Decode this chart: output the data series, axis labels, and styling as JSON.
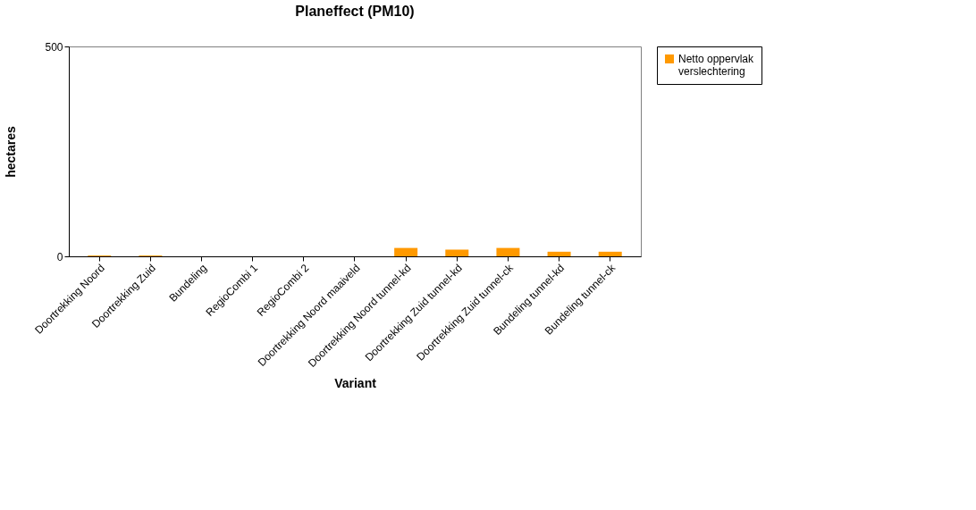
{
  "chart_data": {
    "type": "bar",
    "title": "Planeffect (PM10)",
    "xlabel": "Variant",
    "ylabel": "hectares",
    "categories": [
      "Doortrekking Noord",
      "Doortrekking Zuid",
      "Bundeling",
      "RegioCombi 1",
      "RegioCombi 2",
      "Doortrekking Noord maaiveld",
      "Doortrekking Noord tunnel-kd",
      "Doortrekking Zuid tunnel-kd",
      "Doortrekking Zuid tunnel-ck",
      "Bundeling tunnel-kd",
      "Bundeling tunnel-ck"
    ],
    "series": [
      {
        "name": "Netto oppervlak verslechtering",
        "color": "#ff9900",
        "values": [
          2,
          2,
          0,
          0,
          0,
          0,
          20,
          16,
          20,
          11,
          11
        ]
      }
    ],
    "ylim": [
      0,
      500
    ],
    "yticks": [
      0,
      500
    ],
    "grid": false,
    "legend": "right"
  }
}
